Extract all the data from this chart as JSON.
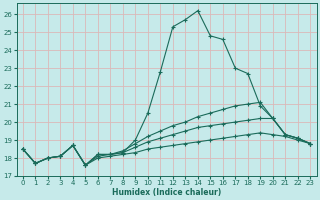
{
  "xlabel": "Humidex (Indice chaleur)",
  "xlim": [
    -0.5,
    23.5
  ],
  "ylim": [
    17,
    26.6
  ],
  "yticks": [
    17,
    18,
    19,
    20,
    21,
    22,
    23,
    24,
    25,
    26
  ],
  "xticks": [
    0,
    1,
    2,
    3,
    4,
    5,
    6,
    7,
    8,
    9,
    10,
    11,
    12,
    13,
    14,
    15,
    16,
    17,
    18,
    19,
    20,
    21,
    22,
    23
  ],
  "background_color": "#c6eaea",
  "grid_color": "#dbb8b8",
  "line_color": "#1a6b5a",
  "lines": [
    [
      18.5,
      17.7,
      18.0,
      18.1,
      18.7,
      17.6,
      18.2,
      18.2,
      18.3,
      19.0,
      20.5,
      22.8,
      25.3,
      25.7,
      26.2,
      24.8,
      24.6,
      23.0,
      22.7,
      20.9,
      20.2,
      19.3,
      19.1,
      18.8
    ],
    [
      18.5,
      17.7,
      18.0,
      18.1,
      18.7,
      17.6,
      18.2,
      18.2,
      18.4,
      18.8,
      19.2,
      19.5,
      19.8,
      20.0,
      20.3,
      20.5,
      20.7,
      20.9,
      21.0,
      21.1,
      20.2,
      19.3,
      19.1,
      18.8
    ],
    [
      18.5,
      17.7,
      18.0,
      18.1,
      18.7,
      17.6,
      18.1,
      18.2,
      18.3,
      18.6,
      18.9,
      19.1,
      19.3,
      19.5,
      19.7,
      19.8,
      19.9,
      20.0,
      20.1,
      20.2,
      20.2,
      19.3,
      19.1,
      18.8
    ],
    [
      18.5,
      17.7,
      18.0,
      18.1,
      18.7,
      17.6,
      18.0,
      18.1,
      18.2,
      18.3,
      18.5,
      18.6,
      18.7,
      18.8,
      18.9,
      19.0,
      19.1,
      19.2,
      19.3,
      19.4,
      19.3,
      19.2,
      19.0,
      18.8
    ]
  ]
}
